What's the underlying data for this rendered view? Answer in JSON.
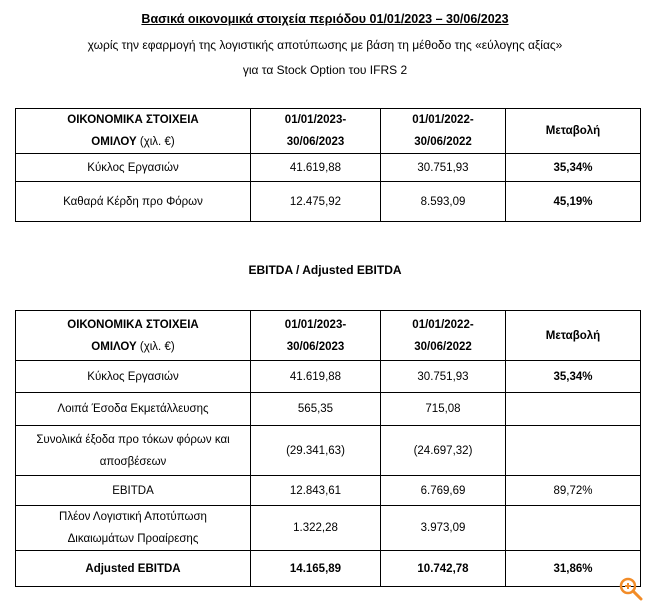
{
  "header": {
    "title": "Βασικά οικονομικά στοιχεία περιόδου 01/01/2023 – 30/06/2023",
    "subtitle_lines": [
      "χωρίς την εφαρμογή της λογιστικής αποτύπωσης με βάση τη μέθοδο της «εύλογης αξίας»",
      "για τα Stock Option του IFRS 2"
    ]
  },
  "table1": {
    "header": [
      {
        "lines": [
          "ΟΙΚΟΝΟΜΙΚΑ ΣΤΟΙΧΕΙΑ",
          "ΟΜΙΛΟΥ"
        ],
        "unit": "(χιλ. €)"
      },
      {
        "lines": [
          "01/01/2023-",
          "30/06/2023"
        ]
      },
      {
        "lines": [
          "01/01/2022-",
          "30/06/2022"
        ]
      },
      {
        "lines": [
          "Μεταβολή"
        ]
      }
    ],
    "rows": [
      {
        "cells": [
          [
            "Κύκλος Εργασιών"
          ],
          [
            "41.619,88"
          ],
          [
            "30.751,93"
          ],
          [
            "35,34%"
          ]
        ],
        "bold": [
          false,
          false,
          false,
          true
        ]
      },
      {
        "cells": [
          [
            "Καθαρά Κέρδη προ Φόρων"
          ],
          [
            "12.475,92"
          ],
          [
            "8.593,09"
          ],
          [
            "45,19%"
          ]
        ],
        "bold": [
          false,
          false,
          false,
          true
        ]
      }
    ]
  },
  "section_title": "EBITDA / Adjusted EBITDA",
  "table2": {
    "header": [
      {
        "lines": [
          "ΟΙΚΟΝΟΜΙΚΑ ΣΤΟΙΧΕΙΑ",
          "ΟΜΙΛΟΥ"
        ],
        "unit": "(χιλ. €)"
      },
      {
        "lines": [
          "01/01/2023-",
          "30/06/2023"
        ]
      },
      {
        "lines": [
          "01/01/2022-",
          "30/06/2022"
        ]
      },
      {
        "lines": [
          "Μεταβολή"
        ]
      }
    ],
    "rows": [
      {
        "cells": [
          [
            "Κύκλος Εργασιών"
          ],
          [
            "41.619,88"
          ],
          [
            "30.751,93"
          ],
          [
            "35,34%"
          ]
        ],
        "bold": [
          false,
          false,
          false,
          true
        ]
      },
      {
        "cells": [
          [
            "Λοιπά Έσοδα Εκμετάλλευσης"
          ],
          [
            "565,35"
          ],
          [
            "715,08"
          ],
          null
        ],
        "bold": [
          false,
          false,
          false,
          false
        ]
      },
      {
        "cells": [
          [
            "Συνολικά έξοδα προ τόκων φόρων και",
            "αποσβέσεων"
          ],
          [
            "(29.341,63)"
          ],
          [
            "(24.697,32)"
          ],
          null
        ],
        "bold": [
          false,
          false,
          false,
          false
        ]
      },
      {
        "cells": [
          [
            "EBITDA"
          ],
          [
            "12.843,61"
          ],
          [
            "6.769,69"
          ],
          [
            "89,72%"
          ]
        ],
        "bold": [
          false,
          false,
          false,
          false
        ]
      },
      {
        "cells": [
          [
            "Πλέον Λογιστική Αποτύπωση",
            "Δικαιωμάτων Προαίρεσης"
          ],
          [
            "1.322,28"
          ],
          [
            "3.973,09"
          ],
          null
        ],
        "bold": [
          false,
          false,
          false,
          false
        ]
      },
      {
        "cells": [
          [
            "Adjusted EBITDA"
          ],
          [
            "14.165,89"
          ],
          [
            "10.742,78"
          ],
          [
            "31,86%"
          ]
        ],
        "bold": [
          true,
          true,
          true,
          true
        ]
      }
    ]
  }
}
